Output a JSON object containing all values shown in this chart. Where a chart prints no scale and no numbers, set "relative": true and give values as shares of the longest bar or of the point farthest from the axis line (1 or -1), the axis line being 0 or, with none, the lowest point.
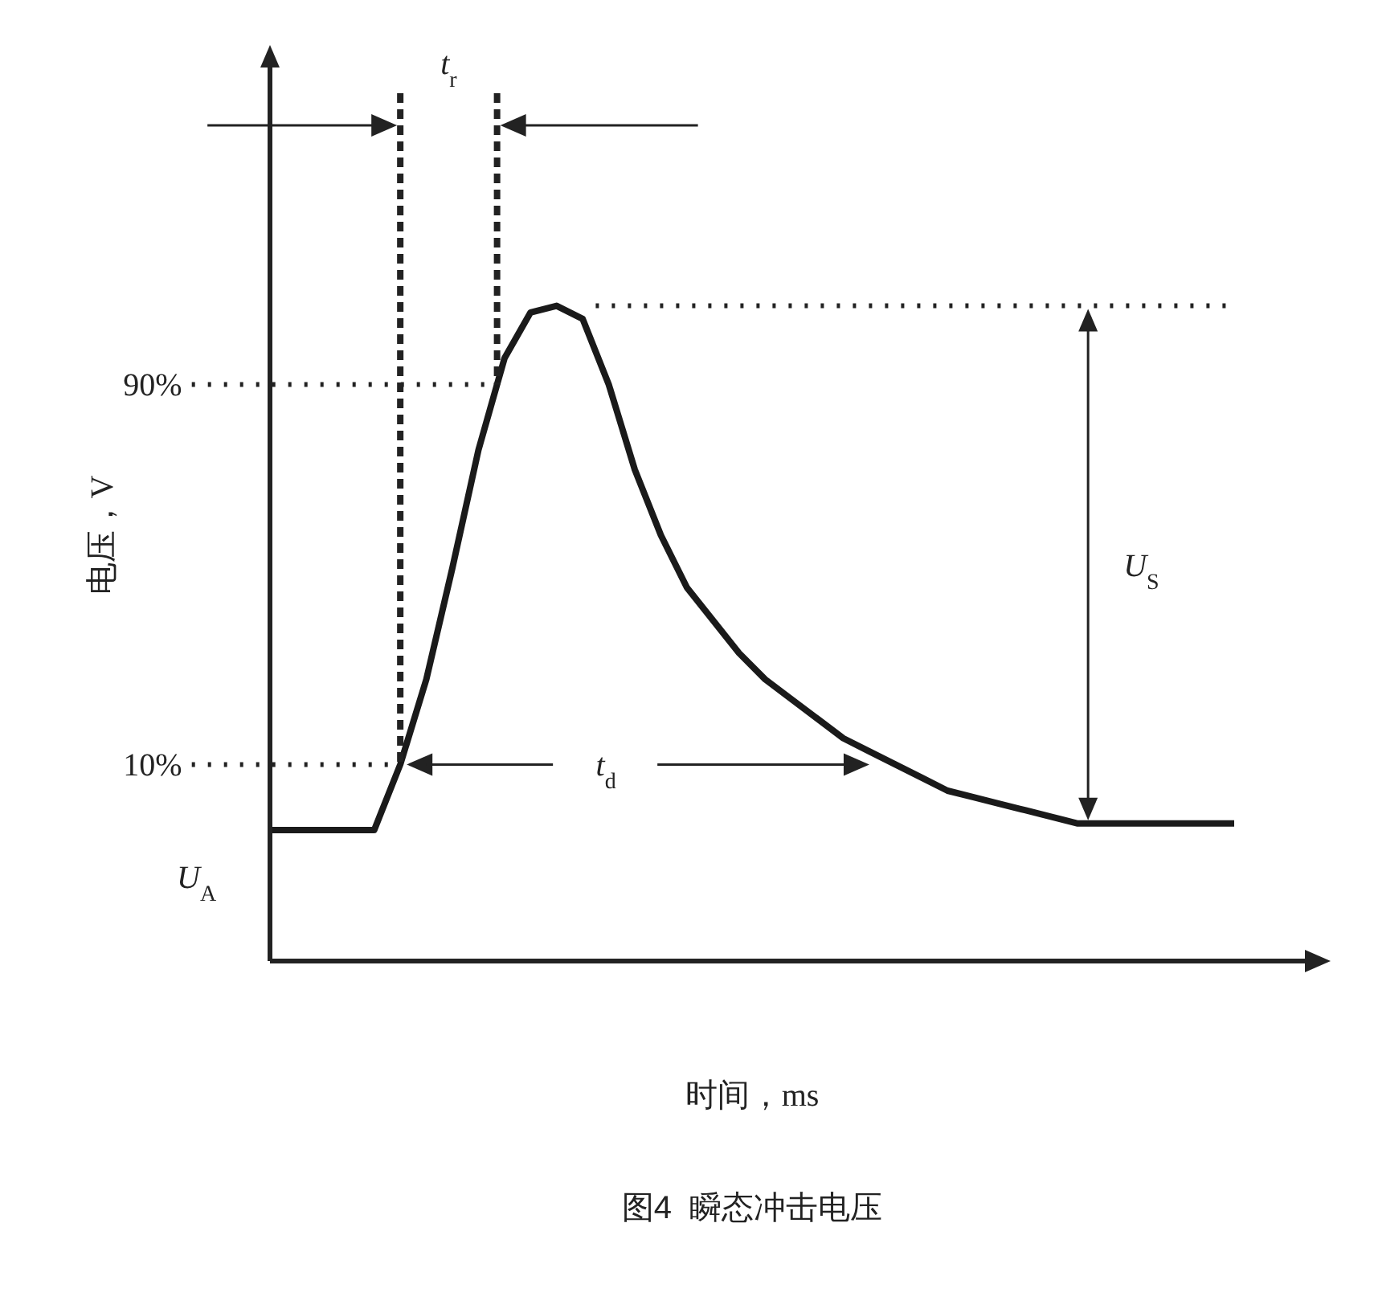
{
  "chart_data": {
    "type": "line",
    "title": "图4  瞬态冲击电压",
    "xlabel": "时间，ms",
    "ylabel": "电压，V",
    "relative": true,
    "marker": "none",
    "line_style": "solid",
    "categories": [
      null,
      null,
      null,
      null,
      null,
      null,
      null,
      null,
      null,
      null,
      null,
      null,
      null,
      null,
      null,
      null,
      null,
      null,
      null,
      null,
      null,
      null,
      null,
      null,
      null,
      null,
      null,
      null,
      null,
      null,
      null,
      null,
      null,
      null,
      null,
      null,
      null,
      null
    ],
    "series": [
      {
        "color": "#1a1a1a",
        "values": [
          0.2,
          0.2,
          0.2,
          0.2,
          0.2,
          0.3,
          0.43,
          0.6,
          0.78,
          0.92,
          0.99,
          1,
          0.98,
          0.88,
          0.75,
          0.65,
          0.57,
          0.52,
          0.47,
          0.43,
          0.4,
          0.37,
          0.34,
          0.32,
          0.3,
          0.28,
          0.26,
          0.25,
          0.24,
          0.23,
          0.22,
          0.21,
          0.21,
          0.21,
          0.21,
          0.21,
          0.21,
          0.21
        ]
      }
    ],
    "ref_lines": [
      {
        "axis": "y",
        "value": 0.3,
        "label": null,
        "color": "#222222",
        "line_style": "dotted"
      },
      {
        "axis": "y",
        "value": 0.88,
        "label": null,
        "color": "#222222",
        "line_style": "dotted"
      },
      {
        "axis": "y",
        "value": 1,
        "label": null,
        "color": "#222222",
        "line_style": "dotted"
      }
    ],
    "annotations": [
      "t$_{r}$",
      "t$_{d}$",
      "U$_{S}$",
      "U$_{A}$",
      "10%",
      "90%"
    ]
  }
}
